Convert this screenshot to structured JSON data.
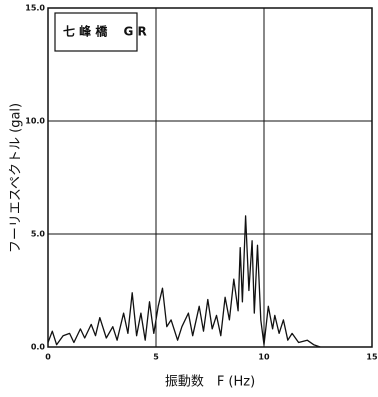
{
  "chart_data": {
    "type": "line",
    "xlabel": "振動数　F (Hz)",
    "ylabel": "フーリエスペクトル (gal)",
    "x": [
      0,
      0.2,
      0.4,
      0.7,
      1.0,
      1.2,
      1.5,
      1.7,
      2.0,
      2.2,
      2.4,
      2.7,
      3.0,
      3.2,
      3.5,
      3.7,
      3.9,
      4.1,
      4.3,
      4.5,
      4.7,
      4.9,
      5.1,
      5.3,
      5.5,
      5.7,
      6.0,
      6.2,
      6.5,
      6.7,
      7.0,
      7.2,
      7.4,
      7.6,
      7.8,
      8.0,
      8.2,
      8.4,
      8.6,
      8.8,
      8.9,
      9.0,
      9.15,
      9.3,
      9.45,
      9.55,
      9.7,
      9.85,
      10.0,
      10.2,
      10.4,
      10.5,
      10.7,
      10.9,
      11.1,
      11.3,
      11.6,
      12.0,
      12.3,
      12.6
    ],
    "series": [
      {
        "name": "七 峰 橋　 G R",
        "color": "#111111",
        "values": [
          0.2,
          0.7,
          0.1,
          0.5,
          0.6,
          0.2,
          0.8,
          0.4,
          1.0,
          0.5,
          1.3,
          0.4,
          0.9,
          0.3,
          1.5,
          0.6,
          2.4,
          0.5,
          1.5,
          0.3,
          2.0,
          0.6,
          1.8,
          2.6,
          0.9,
          1.2,
          0.3,
          0.9,
          1.5,
          0.5,
          1.8,
          0.7,
          2.1,
          0.8,
          1.4,
          0.5,
          2.2,
          1.2,
          3.0,
          1.6,
          4.4,
          2.0,
          5.8,
          2.5,
          4.7,
          1.5,
          4.5,
          1.2,
          0.1,
          1.8,
          0.8,
          1.4,
          0.6,
          1.2,
          0.3,
          0.6,
          0.2,
          0.3,
          0.1,
          0.0
        ]
      }
    ],
    "xlim": [
      0,
      15
    ],
    "xticks": [
      0,
      5,
      10,
      15
    ],
    "ylim": [
      0,
      15
    ],
    "yticks": [
      {
        "value": 0,
        "label": "0.0"
      },
      {
        "value": 5,
        "label": "5.0"
      },
      {
        "value": 10,
        "label": "10.0"
      },
      {
        "value": 15,
        "label": "15.0"
      }
    ],
    "grid": true
  }
}
